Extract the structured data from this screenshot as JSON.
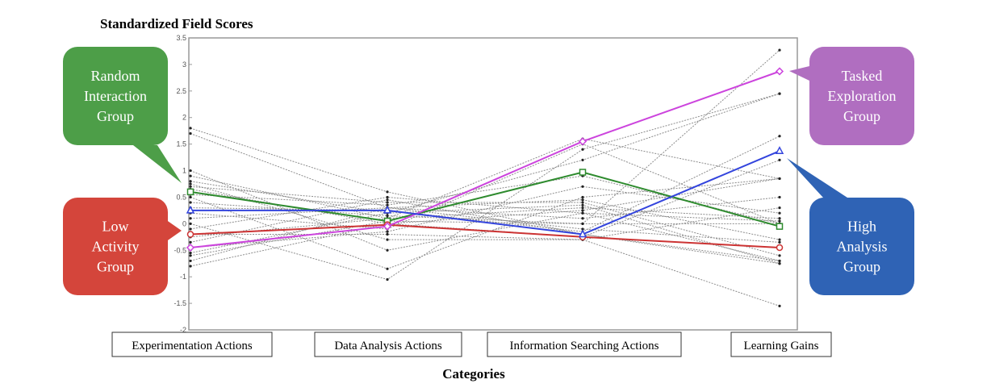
{
  "chart_data": {
    "type": "line",
    "title": "Standardized Field Scores",
    "xlabel": "Categories",
    "ylabel": "",
    "ylim": [
      -2,
      3.5
    ],
    "yticks": [
      "-2",
      "-1.5",
      "-1",
      "-0.5",
      "0",
      "0.5",
      "1",
      "1.5",
      "2",
      "2.5",
      "3",
      "3.5"
    ],
    "categories": [
      "Experimentation Actions",
      "Data Analysis Actions",
      "Information Searching Actions",
      "Learning Gains"
    ],
    "grid": false,
    "legend": "callouts",
    "series": [
      {
        "name": "Random Interaction Group",
        "color": "#2e8b2e",
        "marker": "square",
        "values": [
          0.6,
          0.05,
          0.97,
          -0.05
        ]
      },
      {
        "name": "Low Activity Group",
        "color": "#cc3333",
        "marker": "circle",
        "values": [
          -0.2,
          -0.02,
          -0.25,
          -0.45
        ]
      },
      {
        "name": "Tasked Exploration Group",
        "color": "#cc44dd",
        "marker": "diamond",
        "values": [
          -0.45,
          -0.05,
          1.55,
          2.87
        ]
      },
      {
        "name": "High Analysis Group",
        "color": "#3344dd",
        "marker": "triangle",
        "values": [
          0.25,
          0.25,
          -0.2,
          1.37
        ]
      }
    ],
    "individual_lines": [
      [
        1.8,
        0.6,
        -0.2,
        -0.75
      ],
      [
        1.7,
        0.3,
        0.1,
        0.5
      ],
      [
        1.0,
        -0.5,
        0.2,
        -0.7
      ],
      [
        0.9,
        0.1,
        1.6,
        0.85
      ],
      [
        0.8,
        0.2,
        1.2,
        2.45
      ],
      [
        0.75,
        -0.3,
        -0.3,
        0.3
      ],
      [
        0.7,
        0.4,
        0.4,
        -0.6
      ],
      [
        0.65,
        0.0,
        -0.25,
        1.2
      ],
      [
        0.55,
        0.35,
        0.9,
        0.0
      ],
      [
        0.5,
        -0.85,
        0.5,
        0.85
      ],
      [
        0.4,
        0.15,
        0.0,
        3.27
      ],
      [
        0.3,
        0.25,
        -0.15,
        1.65
      ],
      [
        0.2,
        -0.1,
        1.5,
        0.0
      ],
      [
        0.1,
        0.3,
        0.45,
        -0.3
      ],
      [
        0.0,
        -1.05,
        1.4,
        2.45
      ],
      [
        -0.1,
        0.5,
        0.2,
        0.05
      ],
      [
        -0.2,
        -0.2,
        -0.3,
        -1.55
      ],
      [
        -0.25,
        0.1,
        0.3,
        0.1
      ],
      [
        -0.35,
        0.45,
        -0.2,
        -0.7
      ],
      [
        -0.45,
        -0.15,
        0.7,
        0.2
      ],
      [
        -0.55,
        0.2,
        0.35,
        -0.75
      ],
      [
        -0.6,
        0.05,
        0.0,
        0.0
      ],
      [
        -0.7,
        0.3,
        -0.1,
        -0.35
      ],
      [
        -0.8,
        0.0,
        0.25,
        0.85
      ]
    ]
  },
  "callouts": [
    {
      "lines": [
        "Random",
        "Interaction",
        "Group"
      ],
      "color": "#4d9e48"
    },
    {
      "lines": [
        "Low",
        "Activity",
        "Group"
      ],
      "color": "#d4453b"
    },
    {
      "lines": [
        "Tasked",
        "Exploration",
        "Group"
      ],
      "color": "#b06ec0"
    },
    {
      "lines": [
        "High",
        "Analysis",
        "Group"
      ],
      "color": "#2f63b5"
    }
  ]
}
